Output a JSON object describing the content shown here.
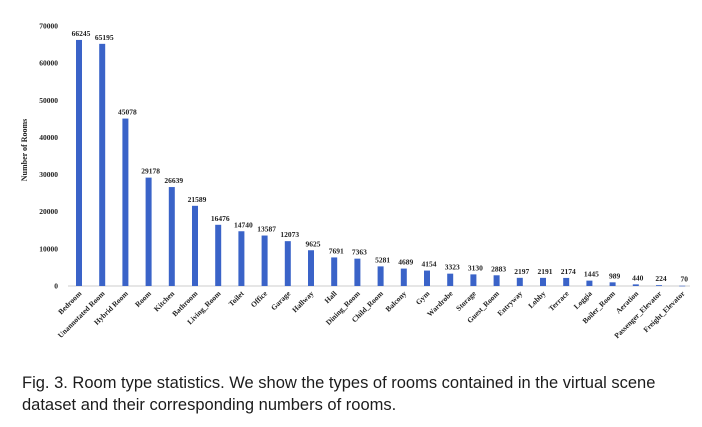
{
  "caption": "Fig. 3. Room type statistics. We show the types of rooms contained in the virtual scene dataset and their corresponding numbers of rooms.",
  "chart_data": {
    "type": "bar",
    "title": "",
    "xlabel": "",
    "ylabel": "Number of Rooms",
    "ylim": [
      0,
      70000
    ],
    "yticks": [
      "0",
      "10000",
      "20000",
      "30000",
      "40000",
      "50000",
      "60000",
      "70000"
    ],
    "grid": false,
    "bar_color": "#3a63c8",
    "categories": [
      "Bedroom",
      "Unannotated Room",
      "Hybrid Room",
      "Room",
      "Kitchen",
      "Bathroom",
      "Living_Room",
      "Toilet",
      "Office",
      "Garage",
      "Hallway",
      "Hall",
      "Dining_Room",
      "Child_Room",
      "Balcony",
      "Gym",
      "Wardrobe",
      "Storage",
      "Guest_Room",
      "Entryway",
      "Lobby",
      "Terrace",
      "Loggia",
      "Boiler_Room",
      "Aeration",
      "Passenger_Elevator",
      "Freight_Elevator"
    ],
    "values": [
      66245,
      65195,
      45078,
      29178,
      26639,
      21589,
      16476,
      14740,
      13587,
      12073,
      9625,
      7691,
      7363,
      5281,
      4689,
      4154,
      3323,
      3130,
      2883,
      2197,
      2191,
      2174,
      1445,
      989,
      440,
      224,
      70
    ],
    "value_labels": [
      "66245",
      "65195",
      "45078",
      "29178",
      "26639",
      "21589",
      "16476",
      "14740",
      "13587",
      "12073",
      "9625",
      "7691",
      "7363",
      "5281",
      "4689",
      "4154",
      "3323",
      "3130",
      "2883",
      "2197",
      "2191",
      "2174",
      "1445",
      "989",
      "440",
      "224",
      "70"
    ]
  }
}
